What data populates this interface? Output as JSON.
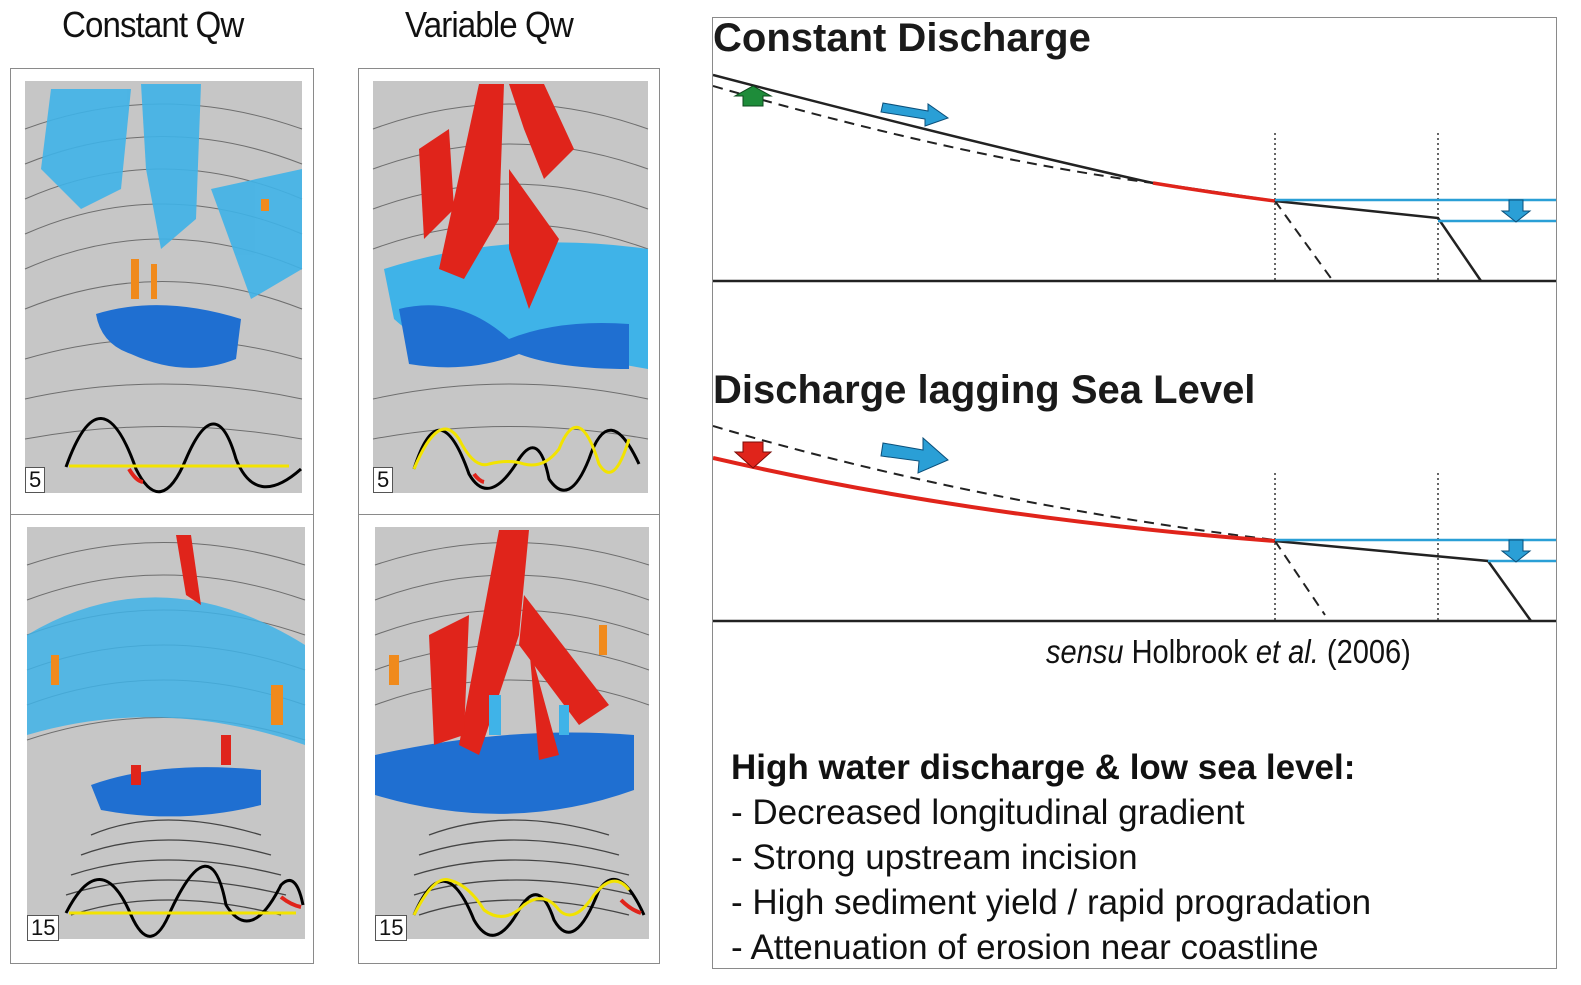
{
  "columns": {
    "left_title": "Constant Qw",
    "right_title": "Variable Qw"
  },
  "panels": [
    {
      "label": "5"
    },
    {
      "label": "5"
    },
    {
      "label": "15"
    },
    {
      "label": "15"
    }
  ],
  "diagrams": {
    "top_title": "Constant Discharge",
    "bottom_title": "Discharge lagging Sea Level"
  },
  "citation": {
    "sensu": "sensu",
    "author": "Holbrook",
    "etal": "et al.",
    "year": "(2006)"
  },
  "summary": {
    "heading": "High water discharge & low sea level:",
    "items": [
      "- Decreased longitudinal gradient",
      "- Strong upstream incision",
      "- High sediment yield / rapid progradation",
      "- Attenuation of erosion near coastline"
    ]
  },
  "colors": {
    "erosion_red": "#e0241b",
    "deposition_blue": "#1f78d1",
    "light_blue": "#3fb3e8",
    "sea_level_blue": "#2a9fd6",
    "arrow_green": "#1e8c3a",
    "discharge_yellow": "#f2e300"
  }
}
